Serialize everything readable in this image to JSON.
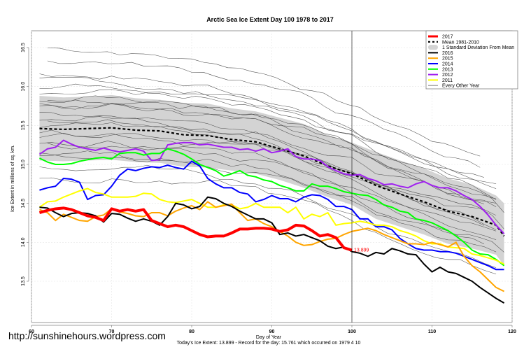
{
  "watermark": "http://sunshinehours.wordpress.com",
  "footer": "Today's Ice Extent: 13.899  - Record for the day: 15.761 which occurred on 1979 4 10",
  "chart_data": {
    "type": "line",
    "title": "Arctic Sea Ice Extent Day 100 1978 to 2017",
    "xlabel": "Day of Year",
    "ylabel": "Ice Extent in millions of sq. km.",
    "xlim": [
      60,
      120
    ],
    "ylim": [
      13.3,
      16.7
    ],
    "xticks": [
      60,
      70,
      80,
      90,
      100,
      110,
      120
    ],
    "xtick_labels": [
      "60",
      "70",
      "80",
      "90",
      "100",
      "110",
      "120"
    ],
    "yticks": [
      13.5,
      14.0,
      14.5,
      15.0,
      15.5,
      16.0,
      16.5
    ],
    "ytick_labels": [
      "13.5",
      "14.0",
      "14.5",
      "15.0",
      "15.5",
      "16.0",
      "16.5"
    ],
    "grid": true,
    "current_day_marker": 100,
    "current_value_label": "13.899",
    "legend_position": "top-right",
    "legend": [
      {
        "label": "2017",
        "color": "#ff0000",
        "style": "thick"
      },
      {
        "label": "Mean 1981-2010",
        "color": "#000000",
        "style": "dashed"
      },
      {
        "label": "1 Standard Deviation From Mean",
        "color": "#d3d3d3",
        "style": "band"
      },
      {
        "label": "2016",
        "color": "#000000",
        "style": "solid"
      },
      {
        "label": "2015",
        "color": "#ffa500",
        "style": "solid"
      },
      {
        "label": "2014",
        "color": "#0000ff",
        "style": "solid"
      },
      {
        "label": "2013",
        "color": "#00ff00",
        "style": "solid"
      },
      {
        "label": "2012",
        "color": "#a020f0",
        "style": "solid"
      },
      {
        "label": "2011",
        "color": "#ffff00",
        "style": "solid"
      },
      {
        "label": "Every Other Year",
        "color": "#808080",
        "style": "thin"
      }
    ],
    "mean": {
      "name": "Mean 1981-2010",
      "x": [
        61,
        64,
        67,
        70,
        73,
        76,
        79,
        82,
        85,
        88,
        91,
        94,
        97,
        100,
        103,
        106,
        109,
        112,
        115,
        118,
        119
      ],
      "values": [
        15.46,
        15.45,
        15.46,
        15.47,
        15.44,
        15.43,
        15.38,
        15.37,
        15.32,
        15.29,
        15.2,
        15.11,
        14.98,
        14.88,
        14.73,
        14.62,
        14.52,
        14.4,
        14.33,
        14.22,
        14.08
      ]
    },
    "std_band": {
      "name": "1 Standard Deviation From Mean",
      "x": [
        61,
        64,
        67,
        70,
        73,
        76,
        79,
        82,
        85,
        88,
        91,
        94,
        97,
        100,
        103,
        106,
        109,
        112,
        115,
        118,
        119
      ],
      "upper": [
        15.88,
        15.86,
        15.87,
        15.89,
        15.85,
        15.83,
        15.79,
        15.78,
        15.72,
        15.68,
        15.6,
        15.52,
        15.38,
        15.28,
        15.16,
        15.05,
        14.95,
        14.82,
        14.74,
        14.6,
        14.5
      ],
      "lower": [
        15.05,
        15.04,
        15.05,
        15.06,
        15.03,
        15.02,
        14.97,
        14.96,
        14.92,
        14.88,
        14.8,
        14.7,
        14.58,
        14.48,
        14.3,
        14.2,
        14.1,
        13.98,
        13.92,
        13.84,
        13.7
      ]
    },
    "series": [
      {
        "name": "2012",
        "color": "#a020f0",
        "x": [
          61,
          62,
          63,
          64,
          65,
          66,
          67,
          68,
          69,
          70,
          71,
          72,
          73,
          74,
          75,
          76,
          77,
          78,
          79,
          80,
          81,
          82,
          83,
          84,
          85,
          86,
          87,
          88,
          89,
          90,
          91,
          92,
          93,
          94,
          95,
          96,
          97,
          98,
          99,
          100,
          101,
          102,
          103,
          104,
          105,
          106,
          107,
          108,
          109,
          110,
          111,
          112,
          113,
          114,
          115,
          116,
          117,
          118,
          119
        ],
        "values": [
          15.13,
          15.2,
          15.22,
          15.31,
          15.26,
          15.22,
          15.2,
          15.18,
          15.21,
          15.18,
          15.16,
          15.18,
          15.2,
          15.17,
          15.05,
          15.06,
          15.25,
          15.27,
          15.28,
          15.28,
          15.25,
          15.26,
          15.24,
          15.22,
          15.22,
          15.19,
          15.2,
          15.17,
          15.2,
          15.15,
          15.17,
          15.2,
          15.1,
          15.07,
          15.07,
          15.05,
          14.97,
          14.92,
          14.88,
          14.86,
          14.87,
          14.82,
          14.79,
          14.74,
          14.75,
          14.72,
          14.7,
          14.75,
          14.78,
          14.73,
          14.7,
          14.7,
          14.66,
          14.6,
          14.55,
          14.46,
          14.35,
          14.22,
          14.11
        ]
      },
      {
        "name": "2013",
        "color": "#00ff00",
        "x": [
          61,
          62,
          63,
          64,
          65,
          66,
          67,
          68,
          69,
          70,
          71,
          72,
          73,
          74,
          75,
          76,
          77,
          78,
          79,
          80,
          81,
          82,
          83,
          84,
          85,
          86,
          87,
          88,
          89,
          90,
          91,
          92,
          93,
          94,
          95,
          96,
          97,
          98,
          99,
          100,
          101,
          102,
          103,
          104,
          105,
          106,
          107,
          108,
          109,
          110,
          111,
          112,
          113,
          114,
          115,
          116,
          117,
          118,
          119
        ],
        "values": [
          15.08,
          15.03,
          15.0,
          15.0,
          15.01,
          15.04,
          15.06,
          15.08,
          15.09,
          15.07,
          15.14,
          15.15,
          15.15,
          15.12,
          15.14,
          15.14,
          15.2,
          15.17,
          15.13,
          15.07,
          15.0,
          14.96,
          14.92,
          14.85,
          14.88,
          14.92,
          14.86,
          14.84,
          14.8,
          14.78,
          14.73,
          14.7,
          14.66,
          14.66,
          14.75,
          14.72,
          14.72,
          14.69,
          14.65,
          14.63,
          14.61,
          14.6,
          14.55,
          14.48,
          14.45,
          14.4,
          14.38,
          14.3,
          14.28,
          14.25,
          14.2,
          14.15,
          14.08,
          14.0,
          13.9,
          13.85,
          13.84,
          13.78,
          13.7
        ]
      },
      {
        "name": "2014",
        "color": "#0000ff",
        "x": [
          61,
          62,
          63,
          64,
          65,
          66,
          67,
          68,
          69,
          70,
          71,
          72,
          73,
          74,
          75,
          76,
          77,
          78,
          79,
          80,
          81,
          82,
          83,
          84,
          85,
          86,
          87,
          88,
          89,
          90,
          91,
          92,
          93,
          94,
          95,
          96,
          97,
          98,
          99,
          100,
          101,
          102,
          103,
          104,
          105,
          106,
          107,
          108,
          109,
          110,
          111,
          112,
          113,
          114,
          115,
          116,
          117,
          118,
          119
        ],
        "values": [
          14.67,
          14.7,
          14.72,
          14.82,
          14.81,
          14.77,
          14.55,
          14.6,
          14.61,
          14.72,
          14.86,
          14.94,
          14.92,
          14.95,
          14.97,
          14.96,
          14.99,
          14.96,
          14.94,
          15.04,
          14.98,
          14.82,
          14.75,
          14.7,
          14.7,
          14.64,
          14.62,
          14.52,
          14.55,
          14.6,
          14.56,
          14.56,
          14.52,
          14.58,
          14.61,
          14.6,
          14.55,
          14.46,
          14.46,
          14.42,
          14.3,
          14.3,
          14.2,
          14.2,
          14.16,
          14.05,
          13.98,
          13.92,
          13.9,
          13.9,
          13.88,
          13.88,
          13.86,
          13.82,
          13.78,
          13.74,
          13.7,
          13.65,
          13.65
        ]
      },
      {
        "name": "2011",
        "color": "#ffff00",
        "x": [
          61,
          62,
          63,
          64,
          65,
          66,
          67,
          68,
          69,
          70,
          71,
          72,
          73,
          74,
          75,
          76,
          77,
          78,
          79,
          80,
          81,
          82,
          83,
          84,
          85,
          86,
          87,
          88,
          89,
          90,
          91,
          92,
          93,
          94,
          95,
          96,
          97,
          98,
          99,
          100,
          101,
          102,
          103,
          104,
          105,
          106,
          107,
          108,
          109,
          110,
          111,
          112,
          113,
          114,
          115,
          116,
          117,
          118,
          119
        ],
        "values": [
          14.45,
          14.52,
          14.53,
          14.58,
          14.62,
          14.66,
          14.69,
          14.64,
          14.62,
          14.58,
          14.58,
          14.58,
          14.59,
          14.63,
          14.62,
          14.55,
          14.52,
          14.51,
          14.53,
          14.55,
          14.5,
          14.45,
          14.45,
          14.48,
          14.48,
          14.43,
          14.45,
          14.5,
          14.45,
          14.45,
          14.45,
          14.38,
          14.45,
          14.3,
          14.36,
          14.33,
          14.38,
          14.22,
          14.24,
          14.25,
          14.27,
          14.25,
          14.22,
          14.22,
          14.2,
          14.15,
          14.12,
          14.08,
          14.02,
          13.98,
          13.98,
          13.94,
          13.93,
          13.92,
          13.85,
          13.83,
          13.8,
          13.77,
          13.72
        ]
      },
      {
        "name": "2015",
        "color": "#ffa500",
        "x": [
          61,
          62,
          63,
          64,
          65,
          66,
          67,
          68,
          69,
          70,
          71,
          72,
          73,
          74,
          75,
          76,
          77,
          78,
          79,
          80,
          81,
          82,
          83,
          84,
          85,
          86,
          87,
          88,
          89,
          90,
          91,
          92,
          93,
          94,
          95,
          96,
          97,
          98,
          99,
          100,
          101,
          102,
          103,
          104,
          105,
          106,
          107,
          108,
          109,
          110,
          111,
          112,
          113,
          114,
          115,
          116,
          117,
          118,
          119
        ],
        "values": [
          14.42,
          14.38,
          14.28,
          14.36,
          14.32,
          14.28,
          14.27,
          14.33,
          14.35,
          14.43,
          14.39,
          14.37,
          14.34,
          14.33,
          14.38,
          14.38,
          14.34,
          14.4,
          14.44,
          14.47,
          14.42,
          14.52,
          14.45,
          14.47,
          14.49,
          14.38,
          14.28,
          14.3,
          14.24,
          14.2,
          14.14,
          14.08,
          14.0,
          13.96,
          13.97,
          14.01,
          14.04,
          14.05,
          14.1,
          14.14,
          14.16,
          14.18,
          14.15,
          14.1,
          14.06,
          14.02,
          13.98,
          13.98,
          13.97,
          14.0,
          13.97,
          13.94,
          14.0,
          13.82,
          13.7,
          13.62,
          13.52,
          13.42,
          13.37
        ]
      },
      {
        "name": "2016",
        "color": "#000000",
        "x": [
          61,
          62,
          63,
          64,
          65,
          66,
          67,
          68,
          69,
          70,
          71,
          72,
          73,
          74,
          75,
          76,
          77,
          78,
          79,
          80,
          81,
          82,
          83,
          84,
          85,
          86,
          87,
          88,
          89,
          90,
          91,
          92,
          93,
          94,
          95,
          96,
          97,
          98,
          99,
          100,
          101,
          102,
          103,
          104,
          105,
          106,
          107,
          108,
          109,
          110,
          111,
          112,
          113,
          114,
          115,
          116,
          117,
          118,
          119
        ],
        "values": [
          14.45,
          14.44,
          14.38,
          14.33,
          14.37,
          14.38,
          14.37,
          14.34,
          14.26,
          14.37,
          14.36,
          14.31,
          14.27,
          14.3,
          14.27,
          14.22,
          14.33,
          14.5,
          14.48,
          14.43,
          14.46,
          14.58,
          14.56,
          14.5,
          14.46,
          14.4,
          14.35,
          14.3,
          14.3,
          14.25,
          14.1,
          14.12,
          14.08,
          14.1,
          14.06,
          14.02,
          13.95,
          13.92,
          13.94,
          13.88,
          13.86,
          13.82,
          13.87,
          13.85,
          13.92,
          13.89,
          13.85,
          13.84,
          13.72,
          13.62,
          13.68,
          13.62,
          13.6,
          13.55,
          13.5,
          13.42,
          13.35,
          13.28,
          13.22
        ]
      },
      {
        "name": "2017",
        "color": "#ff0000",
        "x": [
          61,
          62,
          63,
          64,
          65,
          66,
          67,
          68,
          69,
          70,
          71,
          72,
          73,
          74,
          75,
          76,
          77,
          78,
          79,
          80,
          81,
          82,
          83,
          84,
          85,
          86,
          87,
          88,
          89,
          90,
          91,
          92,
          93,
          94,
          95,
          96,
          97,
          98,
          99,
          100
        ],
        "values": [
          14.38,
          14.41,
          14.43,
          14.44,
          14.42,
          14.38,
          14.34,
          14.32,
          14.28,
          14.43,
          14.4,
          14.42,
          14.4,
          14.42,
          14.28,
          14.24,
          14.2,
          14.22,
          14.2,
          14.15,
          14.1,
          14.07,
          14.08,
          14.08,
          14.12,
          14.17,
          14.17,
          14.18,
          14.18,
          14.17,
          14.14,
          14.16,
          14.22,
          14.21,
          14.15,
          14.08,
          14.1,
          14.06,
          13.93,
          13.899
        ]
      }
    ],
    "other_years_note": "Every Other Year (thin grey lines, 1978-2010)"
  }
}
